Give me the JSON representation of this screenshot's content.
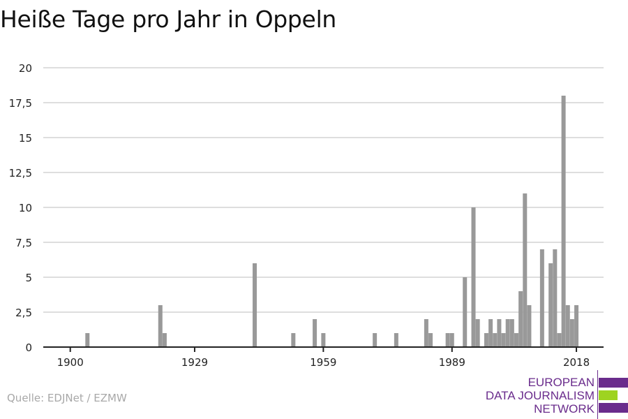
{
  "chart_data": {
    "type": "bar",
    "title": "Heiße Tage pro Jahr in Oppeln",
    "xlabel": "",
    "ylabel": "",
    "ylim": [
      0,
      20
    ],
    "y_ticks": [
      "0",
      "2,5",
      "5",
      "7,5",
      "10",
      "12,5",
      "15",
      "17,5",
      "20"
    ],
    "y_tick_values": [
      0,
      2.5,
      5,
      7.5,
      10,
      12.5,
      15,
      17.5,
      20
    ],
    "x_ticks": [
      "1900",
      "1929",
      "1959",
      "1989",
      "2018"
    ],
    "x_tick_values": [
      1900,
      1929,
      1959,
      1989,
      2018
    ],
    "grid": true,
    "bar_color": "#999999",
    "x": [
      1904,
      1921,
      1922,
      1943,
      1952,
      1957,
      1959,
      1971,
      1976,
      1983,
      1984,
      1988,
      1989,
      1992,
      1994,
      1995,
      1997,
      1998,
      1999,
      2000,
      2001,
      2002,
      2003,
      2004,
      2005,
      2006,
      2007,
      2010,
      2012,
      2013,
      2014,
      2015,
      2016,
      2017,
      2018
    ],
    "values": [
      1,
      3,
      1,
      6,
      1,
      2,
      1,
      1,
      1,
      2,
      1,
      1,
      1,
      5,
      10,
      2,
      1,
      2,
      1,
      2,
      1,
      2,
      2,
      1,
      4,
      11,
      3,
      7,
      6,
      7,
      1,
      18,
      3,
      2,
      3
    ]
  },
  "source": "Quelle: EDJNet / EZMW",
  "logo": {
    "lines": [
      "EUROPEAN",
      "DATA JOURNALISM",
      "NETWORK"
    ],
    "colors": {
      "purple": "#6a2c8c",
      "green": "#9ed321"
    }
  }
}
